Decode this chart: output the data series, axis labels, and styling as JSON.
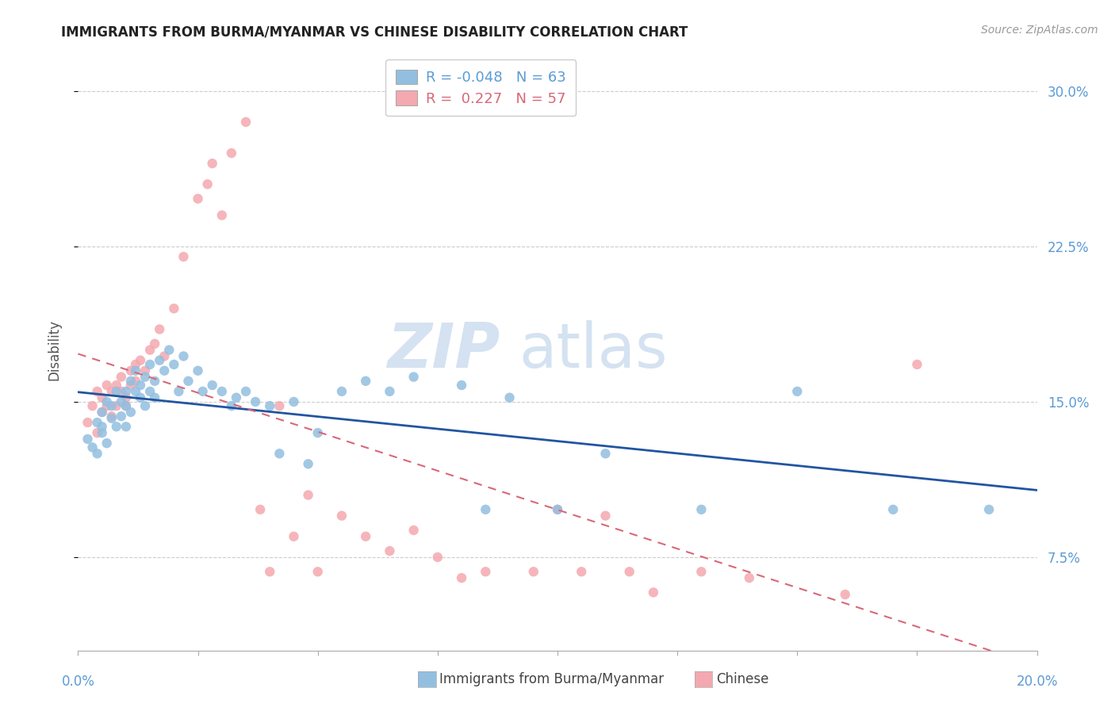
{
  "title": "IMMIGRANTS FROM BURMA/MYANMAR VS CHINESE DISABILITY CORRELATION CHART",
  "source": "Source: ZipAtlas.com",
  "ylabel": "Disability",
  "xlim": [
    0.0,
    0.2
  ],
  "ylim": [
    0.03,
    0.32
  ],
  "yticks": [
    0.075,
    0.15,
    0.225,
    0.3
  ],
  "ytick_labels": [
    "7.5%",
    "15.0%",
    "22.5%",
    "30.0%"
  ],
  "xticks": [
    0.0,
    0.025,
    0.05,
    0.075,
    0.1,
    0.125,
    0.15,
    0.175,
    0.2
  ],
  "legend_r_blue": "-0.048",
  "legend_n_blue": "63",
  "legend_r_pink": "0.227",
  "legend_n_pink": "57",
  "blue_color": "#92bfe0",
  "pink_color": "#f4a8b0",
  "blue_line_color": "#2255a0",
  "pink_line_color": "#d86878",
  "blue_scatter_x": [
    0.002,
    0.003,
    0.004,
    0.004,
    0.005,
    0.005,
    0.005,
    0.006,
    0.006,
    0.007,
    0.007,
    0.008,
    0.008,
    0.009,
    0.009,
    0.01,
    0.01,
    0.01,
    0.011,
    0.011,
    0.012,
    0.012,
    0.013,
    0.013,
    0.014,
    0.014,
    0.015,
    0.015,
    0.016,
    0.016,
    0.017,
    0.018,
    0.019,
    0.02,
    0.021,
    0.022,
    0.023,
    0.025,
    0.026,
    0.028,
    0.03,
    0.032,
    0.033,
    0.035,
    0.037,
    0.04,
    0.042,
    0.045,
    0.048,
    0.05,
    0.055,
    0.06,
    0.065,
    0.07,
    0.08,
    0.085,
    0.09,
    0.1,
    0.11,
    0.13,
    0.15,
    0.17,
    0.19
  ],
  "blue_scatter_y": [
    0.132,
    0.128,
    0.14,
    0.125,
    0.138,
    0.145,
    0.135,
    0.15,
    0.13,
    0.142,
    0.148,
    0.138,
    0.155,
    0.143,
    0.15,
    0.138,
    0.155,
    0.148,
    0.16,
    0.145,
    0.155,
    0.165,
    0.152,
    0.158,
    0.162,
    0.148,
    0.155,
    0.168,
    0.16,
    0.152,
    0.17,
    0.165,
    0.175,
    0.168,
    0.155,
    0.172,
    0.16,
    0.165,
    0.155,
    0.158,
    0.155,
    0.148,
    0.152,
    0.155,
    0.15,
    0.148,
    0.125,
    0.15,
    0.12,
    0.135,
    0.155,
    0.16,
    0.155,
    0.162,
    0.158,
    0.098,
    0.152,
    0.098,
    0.125,
    0.098,
    0.155,
    0.098,
    0.098
  ],
  "pink_scatter_x": [
    0.002,
    0.003,
    0.004,
    0.004,
    0.005,
    0.005,
    0.006,
    0.006,
    0.007,
    0.007,
    0.008,
    0.008,
    0.009,
    0.009,
    0.01,
    0.01,
    0.011,
    0.011,
    0.012,
    0.012,
    0.013,
    0.014,
    0.015,
    0.016,
    0.017,
    0.018,
    0.02,
    0.022,
    0.025,
    0.027,
    0.028,
    0.03,
    0.032,
    0.035,
    0.038,
    0.04,
    0.042,
    0.045,
    0.048,
    0.05,
    0.055,
    0.06,
    0.065,
    0.07,
    0.075,
    0.08,
    0.085,
    0.095,
    0.1,
    0.105,
    0.11,
    0.115,
    0.12,
    0.13,
    0.14,
    0.16,
    0.175
  ],
  "pink_scatter_y": [
    0.14,
    0.148,
    0.135,
    0.155,
    0.145,
    0.152,
    0.148,
    0.158,
    0.155,
    0.143,
    0.158,
    0.148,
    0.155,
    0.162,
    0.152,
    0.148,
    0.165,
    0.158,
    0.16,
    0.168,
    0.17,
    0.165,
    0.175,
    0.178,
    0.185,
    0.172,
    0.195,
    0.22,
    0.248,
    0.255,
    0.265,
    0.24,
    0.27,
    0.285,
    0.098,
    0.068,
    0.148,
    0.085,
    0.105,
    0.068,
    0.095,
    0.085,
    0.078,
    0.088,
    0.075,
    0.065,
    0.068,
    0.068,
    0.098,
    0.068,
    0.095,
    0.068,
    0.058,
    0.068,
    0.065,
    0.057,
    0.168
  ]
}
